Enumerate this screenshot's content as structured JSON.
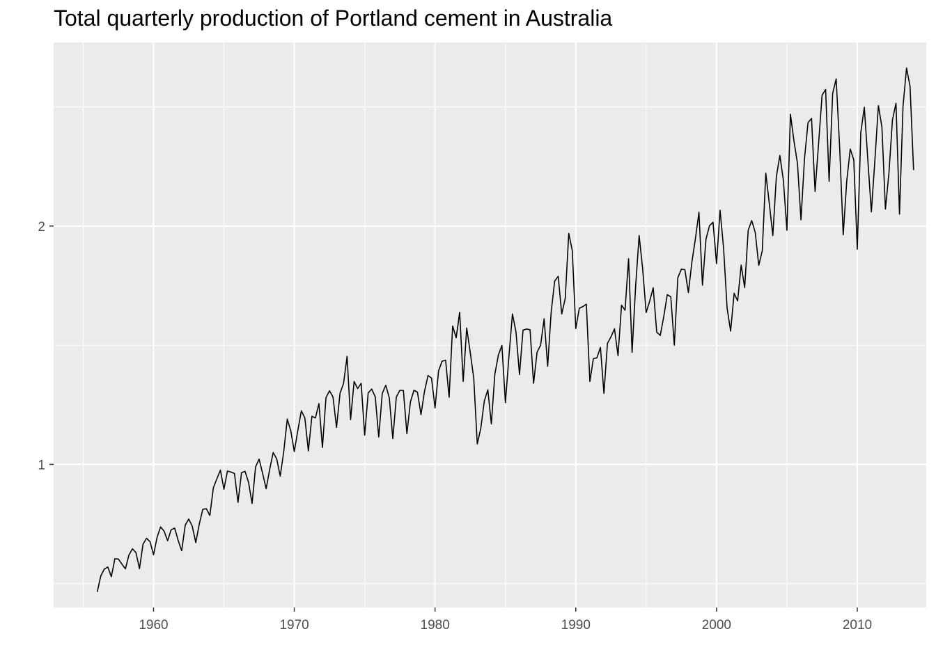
{
  "chart_data": {
    "type": "line",
    "title": "Total quarterly production of Portland cement in Australia",
    "xlabel": "",
    "ylabel": "",
    "x_start": 1956.0,
    "x_step": 0.25,
    "xlim": [
      1952.9,
      2014.9
    ],
    "ylim": [
      0.4,
      2.77
    ],
    "x_ticks": [
      1960,
      1970,
      1980,
      1990,
      2000,
      2010
    ],
    "x_minor_ticks": [
      1955,
      1965,
      1975,
      1985,
      1995,
      2005,
      2015
    ],
    "y_ticks": [
      1,
      2
    ],
    "y_minor_ticks": [
      0.5,
      1.5,
      2.5
    ],
    "x_tick_labels": [
      "1960",
      "1970",
      "1980",
      "1990",
      "2000",
      "2010"
    ],
    "y_tick_labels": [
      "1",
      "2"
    ],
    "grid": true,
    "legend": "none",
    "colors": {
      "panel": "#ebebeb",
      "grid": "#ffffff",
      "line": "#000000",
      "axis_text": "#4d4d4d"
    },
    "series": [
      {
        "values": [
          0.465,
          0.532,
          0.561,
          0.57,
          0.529,
          0.604,
          0.603,
          0.582,
          0.562,
          0.62,
          0.646,
          0.63,
          0.563,
          0.665,
          0.69,
          0.676,
          0.621,
          0.694,
          0.738,
          0.72,
          0.68,
          0.726,
          0.733,
          0.681,
          0.638,
          0.745,
          0.771,
          0.741,
          0.672,
          0.75,
          0.812,
          0.814,
          0.786,
          0.902,
          0.94,
          0.976,
          0.896,
          0.972,
          0.968,
          0.962,
          0.841,
          0.965,
          0.971,
          0.925,
          0.836,
          0.99,
          1.022,
          0.962,
          0.898,
          0.979,
          1.05,
          1.023,
          0.951,
          1.054,
          1.19,
          1.141,
          1.054,
          1.142,
          1.225,
          1.195,
          1.057,
          1.202,
          1.195,
          1.255,
          1.071,
          1.28,
          1.309,
          1.283,
          1.155,
          1.299,
          1.34,
          1.453,
          1.188,
          1.348,
          1.318,
          1.34,
          1.123,
          1.3,
          1.316,
          1.284,
          1.115,
          1.298,
          1.332,
          1.279,
          1.108,
          1.283,
          1.311,
          1.31,
          1.129,
          1.262,
          1.311,
          1.303,
          1.209,
          1.306,
          1.373,
          1.362,
          1.237,
          1.392,
          1.433,
          1.437,
          1.282,
          1.581,
          1.531,
          1.638,
          1.348,
          1.572,
          1.47,
          1.361,
          1.086,
          1.151,
          1.266,
          1.313,
          1.17,
          1.379,
          1.459,
          1.499,
          1.259,
          1.453,
          1.631,
          1.556,
          1.377,
          1.563,
          1.568,
          1.565,
          1.34,
          1.471,
          1.5,
          1.611,
          1.412,
          1.638,
          1.769,
          1.789,
          1.631,
          1.696,
          1.969,
          1.897,
          1.57,
          1.655,
          1.662,
          1.672,
          1.348,
          1.444,
          1.447,
          1.491,
          1.298,
          1.508,
          1.535,
          1.569,
          1.456,
          1.668,
          1.647,
          1.863,
          1.47,
          1.746,
          1.96,
          1.821,
          1.637,
          1.685,
          1.741,
          1.555,
          1.541,
          1.62,
          1.712,
          1.703,
          1.5,
          1.783,
          1.819,
          1.817,
          1.721,
          1.849,
          1.947,
          2.058,
          1.752,
          1.945,
          2.001,
          2.016,
          1.842,
          2.066,
          1.908,
          1.656,
          1.559,
          1.718,
          1.686,
          1.836,
          1.742,
          1.982,
          2.023,
          1.973,
          1.835,
          1.896,
          2.222,
          2.094,
          1.96,
          2.207,
          2.296,
          2.191,
          1.982,
          2.469,
          2.357,
          2.263,
          2.026,
          2.283,
          2.434,
          2.451,
          2.145,
          2.346,
          2.549,
          2.573,
          2.187,
          2.556,
          2.617,
          2.327,
          1.963,
          2.188,
          2.323,
          2.278,
          1.903,
          2.392,
          2.498,
          2.277,
          2.059,
          2.275,
          2.505,
          2.415,
          2.071,
          2.223,
          2.446,
          2.515,
          2.05,
          2.503,
          2.663,
          2.585,
          2.235
        ]
      }
    ]
  }
}
